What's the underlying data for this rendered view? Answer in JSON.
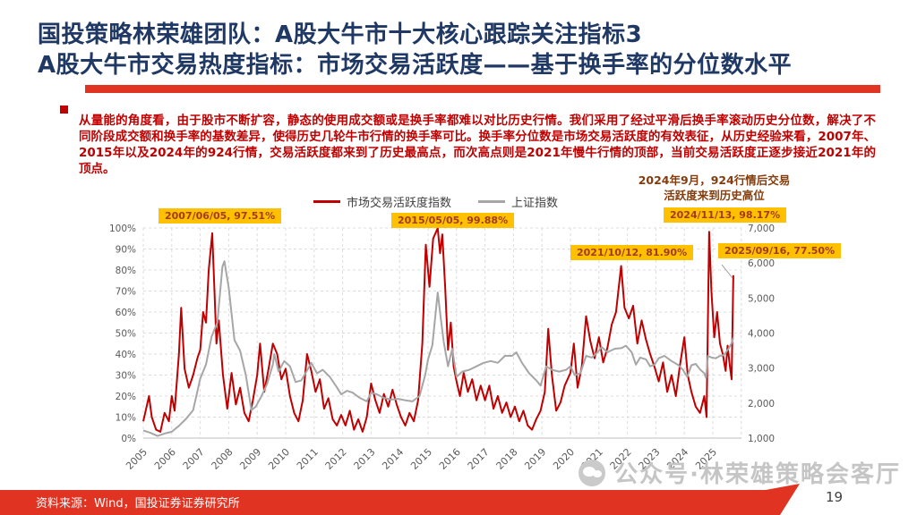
{
  "header": {
    "title_line1": "国投策略林荣雄团队：A股大牛市十大核心跟踪关注指标3",
    "title_line2": "A股大牛市交易热度指标：市场交易活跃度——基于换手率的分位数水平",
    "accent_color": "#E03322",
    "title_color": "#1F3864"
  },
  "body_paragraph": "从量能的角度看，由于股市不断扩容，静态的使用成交额或是换手率都难以对比历史行情。我们采用了经过平滑后换手率滚动历史分位数，解决了不同阶段成交额和换手率的基数差异，使得历史几轮牛市行情的换手率可比。换手率分位数是市场交易活跃度的有效表征，从历史经验来看，2007年、2015年以及2024年的924行情，交易活跃度都来到了历史最高点，而次高点则是2021年慢牛行情的顶部，当前交易活跃度正逐步接近2021年的顶点。",
  "chart_data": {
    "type": "line",
    "title": "",
    "note": {
      "line1": "2024年9月，924行情后交易",
      "line2": "活跃度来到历史高位"
    },
    "legend_position": "top-center",
    "grid": true,
    "x_axis": {
      "label": "",
      "ticks": [
        "2005",
        "2006",
        "2007",
        "2008",
        "2009",
        "2010",
        "2011",
        "2012",
        "2013",
        "2014",
        "2015",
        "2016",
        "2017",
        "2018",
        "2019",
        "2020",
        "2021",
        "2022",
        "2023",
        "2024",
        "2025"
      ]
    },
    "y_axis_left": {
      "label": "",
      "range": [
        0,
        100
      ],
      "unit": "%",
      "ticks": [
        "100%",
        "90%",
        "80%",
        "70%",
        "60%",
        "50%",
        "40%",
        "30%",
        "20%",
        "10%",
        "0%"
      ]
    },
    "y_axis_right": {
      "label": "",
      "range": [
        1000,
        7000
      ],
      "ticks": [
        "7,000",
        "6,000",
        "5,000",
        "4,000",
        "3,000",
        "2,000",
        "1,000"
      ]
    },
    "legend": [
      {
        "name": "市场交易活跃度指数",
        "color": "#C00000"
      },
      {
        "name": "上证指数",
        "color": "#A6A6A6"
      }
    ],
    "annotations": [
      {
        "text": "2007/06/05, 97.51%",
        "date": "2007/06/05",
        "value": 97.51
      },
      {
        "text": "2015/05/05, 99.88%",
        "date": "2015/05/05",
        "value": 99.88
      },
      {
        "text": "2021/10/12, 81.90%",
        "date": "2021/10/12",
        "value": 81.9
      },
      {
        "text": "2024/11/13, 98.17%",
        "date": "2024/11/13",
        "value": 98.17
      },
      {
        "text": "2025/09/16, 77.50%",
        "date": "2025/09/16",
        "value": 77.5
      }
    ],
    "annotation_style": {
      "background": "#FFC000",
      "text_color": "#A33B1B"
    },
    "series": [
      {
        "name": "市场交易活跃度指数",
        "axis": "left",
        "color": "#C00000",
        "points": [
          [
            2005.0,
            8
          ],
          [
            2005.1,
            14
          ],
          [
            2005.2,
            20
          ],
          [
            2005.3,
            10
          ],
          [
            2005.45,
            4
          ],
          [
            2005.6,
            3
          ],
          [
            2005.75,
            12
          ],
          [
            2005.9,
            8
          ],
          [
            2006.0,
            20
          ],
          [
            2006.1,
            13
          ],
          [
            2006.25,
            40
          ],
          [
            2006.33,
            62
          ],
          [
            2006.45,
            33
          ],
          [
            2006.6,
            24
          ],
          [
            2006.75,
            30
          ],
          [
            2006.9,
            38
          ],
          [
            2007.0,
            42
          ],
          [
            2007.1,
            60
          ],
          [
            2007.2,
            55
          ],
          [
            2007.3,
            80
          ],
          [
            2007.42,
            97.5
          ],
          [
            2007.5,
            70
          ],
          [
            2007.57,
            45
          ],
          [
            2007.65,
            56
          ],
          [
            2007.8,
            30
          ],
          [
            2007.95,
            14
          ],
          [
            2008.1,
            31
          ],
          [
            2008.25,
            16
          ],
          [
            2008.4,
            24
          ],
          [
            2008.55,
            12
          ],
          [
            2008.7,
            8
          ],
          [
            2008.85,
            18
          ],
          [
            2009.0,
            30
          ],
          [
            2009.1,
            45
          ],
          [
            2009.25,
            22
          ],
          [
            2009.4,
            33
          ],
          [
            2009.55,
            45
          ],
          [
            2009.7,
            40
          ],
          [
            2009.85,
            28
          ],
          [
            2010.0,
            33
          ],
          [
            2010.15,
            20
          ],
          [
            2010.3,
            12
          ],
          [
            2010.45,
            8
          ],
          [
            2010.6,
            18
          ],
          [
            2010.75,
            40
          ],
          [
            2010.9,
            32
          ],
          [
            2011.05,
            22
          ],
          [
            2011.2,
            28
          ],
          [
            2011.35,
            14
          ],
          [
            2011.5,
            19
          ],
          [
            2011.65,
            9
          ],
          [
            2011.8,
            6
          ],
          [
            2011.95,
            11
          ],
          [
            2012.1,
            6
          ],
          [
            2012.25,
            13
          ],
          [
            2012.4,
            4
          ],
          [
            2012.55,
            9
          ],
          [
            2012.7,
            3
          ],
          [
            2012.85,
            10
          ],
          [
            2013.0,
            26
          ],
          [
            2013.15,
            18
          ],
          [
            2013.3,
            12
          ],
          [
            2013.45,
            21
          ],
          [
            2013.6,
            15
          ],
          [
            2013.75,
            23
          ],
          [
            2013.9,
            16
          ],
          [
            2014.05,
            10
          ],
          [
            2014.2,
            6
          ],
          [
            2014.35,
            12
          ],
          [
            2014.5,
            8
          ],
          [
            2014.65,
            18
          ],
          [
            2014.8,
            45
          ],
          [
            2014.92,
            92
          ],
          [
            2015.05,
            72
          ],
          [
            2015.18,
            95
          ],
          [
            2015.34,
            99.9
          ],
          [
            2015.42,
            88
          ],
          [
            2015.5,
            97
          ],
          [
            2015.6,
            72
          ],
          [
            2015.7,
            42
          ],
          [
            2015.8,
            55
          ],
          [
            2015.9,
            34
          ],
          [
            2016.0,
            27
          ],
          [
            2016.12,
            20
          ],
          [
            2016.25,
            31
          ],
          [
            2016.4,
            22
          ],
          [
            2016.55,
            28
          ],
          [
            2016.7,
            18
          ],
          [
            2016.85,
            25
          ],
          [
            2017.0,
            18
          ],
          [
            2017.15,
            25
          ],
          [
            2017.3,
            14
          ],
          [
            2017.45,
            20
          ],
          [
            2017.6,
            12
          ],
          [
            2017.75,
            17
          ],
          [
            2017.9,
            10
          ],
          [
            2018.05,
            15
          ],
          [
            2018.2,
            8
          ],
          [
            2018.35,
            13
          ],
          [
            2018.5,
            6
          ],
          [
            2018.65,
            4
          ],
          [
            2018.8,
            9
          ],
          [
            2018.95,
            13
          ],
          [
            2019.1,
            22
          ],
          [
            2019.22,
            52
          ],
          [
            2019.35,
            30
          ],
          [
            2019.5,
            13
          ],
          [
            2019.65,
            17
          ],
          [
            2019.8,
            25
          ],
          [
            2020.0,
            31
          ],
          [
            2020.12,
            45
          ],
          [
            2020.25,
            24
          ],
          [
            2020.4,
            34
          ],
          [
            2020.55,
            58
          ],
          [
            2020.7,
            46
          ],
          [
            2020.85,
            38
          ],
          [
            2021.0,
            48
          ],
          [
            2021.15,
            36
          ],
          [
            2021.3,
            43
          ],
          [
            2021.45,
            54
          ],
          [
            2021.6,
            60
          ],
          [
            2021.78,
            81.9
          ],
          [
            2021.9,
            62
          ],
          [
            2022.05,
            57
          ],
          [
            2022.2,
            63
          ],
          [
            2022.35,
            45
          ],
          [
            2022.5,
            56
          ],
          [
            2022.65,
            47
          ],
          [
            2022.8,
            40
          ],
          [
            2022.95,
            34
          ],
          [
            2023.1,
            27
          ],
          [
            2023.25,
            36
          ],
          [
            2023.4,
            22
          ],
          [
            2023.55,
            30
          ],
          [
            2023.7,
            20
          ],
          [
            2023.85,
            35
          ],
          [
            2024.0,
            48
          ],
          [
            2024.12,
            30
          ],
          [
            2024.25,
            22
          ],
          [
            2024.4,
            15
          ],
          [
            2024.55,
            12
          ],
          [
            2024.7,
            20
          ],
          [
            2024.78,
            10
          ],
          [
            2024.87,
            98.17
          ],
          [
            2024.95,
            70
          ],
          [
            2025.05,
            48
          ],
          [
            2025.15,
            60
          ],
          [
            2025.25,
            45
          ],
          [
            2025.35,
            40
          ],
          [
            2025.45,
            32
          ],
          [
            2025.52,
            44
          ],
          [
            2025.6,
            34
          ],
          [
            2025.66,
            28
          ],
          [
            2025.72,
            77.5
          ]
        ]
      },
      {
        "name": "上证指数",
        "axis": "right",
        "color": "#A6A6A6",
        "points": [
          [
            2005.0,
            1220
          ],
          [
            2005.25,
            1150
          ],
          [
            2005.5,
            1060
          ],
          [
            2005.75,
            1130
          ],
          [
            2006.0,
            1180
          ],
          [
            2006.25,
            1350
          ],
          [
            2006.5,
            1550
          ],
          [
            2006.75,
            1800
          ],
          [
            2007.0,
            2700
          ],
          [
            2007.2,
            3100
          ],
          [
            2007.4,
            3900
          ],
          [
            2007.6,
            4300
          ],
          [
            2007.78,
            5900
          ],
          [
            2007.85,
            6050
          ],
          [
            2008.0,
            5300
          ],
          [
            2008.2,
            3800
          ],
          [
            2008.4,
            3500
          ],
          [
            2008.6,
            2800
          ],
          [
            2008.8,
            1800
          ],
          [
            2008.95,
            1900
          ],
          [
            2009.15,
            2200
          ],
          [
            2009.35,
            2550
          ],
          [
            2009.55,
            3100
          ],
          [
            2009.6,
            3400
          ],
          [
            2009.75,
            2900
          ],
          [
            2009.95,
            3200
          ],
          [
            2010.15,
            3050
          ],
          [
            2010.35,
            2600
          ],
          [
            2010.55,
            2650
          ],
          [
            2010.8,
            3000
          ],
          [
            2010.9,
            3150
          ],
          [
            2011.1,
            2850
          ],
          [
            2011.3,
            2950
          ],
          [
            2011.55,
            2750
          ],
          [
            2011.8,
            2450
          ],
          [
            2011.95,
            2250
          ],
          [
            2012.15,
            2350
          ],
          [
            2012.35,
            2300
          ],
          [
            2012.6,
            2150
          ],
          [
            2012.85,
            2050
          ],
          [
            2013.0,
            2300
          ],
          [
            2013.2,
            2250
          ],
          [
            2013.45,
            2150
          ],
          [
            2013.7,
            2100
          ],
          [
            2013.95,
            2120
          ],
          [
            2014.2,
            2080
          ],
          [
            2014.45,
            2050
          ],
          [
            2014.7,
            2200
          ],
          [
            2014.9,
            2800
          ],
          [
            2015.0,
            3250
          ],
          [
            2015.15,
            3650
          ],
          [
            2015.34,
            5160
          ],
          [
            2015.45,
            4400
          ],
          [
            2015.55,
            3750
          ],
          [
            2015.7,
            3050
          ],
          [
            2015.85,
            3550
          ],
          [
            2016.0,
            2750
          ],
          [
            2016.2,
            2900
          ],
          [
            2016.45,
            2950
          ],
          [
            2016.7,
            3050
          ],
          [
            2016.95,
            3150
          ],
          [
            2017.2,
            3200
          ],
          [
            2017.45,
            3150
          ],
          [
            2017.7,
            3350
          ],
          [
            2017.95,
            3350
          ],
          [
            2018.1,
            3450
          ],
          [
            2018.3,
            3150
          ],
          [
            2018.55,
            2850
          ],
          [
            2018.8,
            2650
          ],
          [
            2018.95,
            2500
          ],
          [
            2019.15,
            3050
          ],
          [
            2019.35,
            2950
          ],
          [
            2019.6,
            2900
          ],
          [
            2019.85,
            2950
          ],
          [
            2020.0,
            3050
          ],
          [
            2020.15,
            2800
          ],
          [
            2020.35,
            2850
          ],
          [
            2020.55,
            3350
          ],
          [
            2020.75,
            3300
          ],
          [
            2020.95,
            3450
          ],
          [
            2021.1,
            3600
          ],
          [
            2021.3,
            3450
          ],
          [
            2021.55,
            3550
          ],
          [
            2021.8,
            3570
          ],
          [
            2021.95,
            3640
          ],
          [
            2022.15,
            3450
          ],
          [
            2022.3,
            3100
          ],
          [
            2022.45,
            3300
          ],
          [
            2022.65,
            3250
          ],
          [
            2022.8,
            3050
          ],
          [
            2022.95,
            3100
          ],
          [
            2023.1,
            3280
          ],
          [
            2023.3,
            3350
          ],
          [
            2023.55,
            3200
          ],
          [
            2023.8,
            3080
          ],
          [
            2023.95,
            2950
          ],
          [
            2024.1,
            2750
          ],
          [
            2024.25,
            3080
          ],
          [
            2024.4,
            3120
          ],
          [
            2024.55,
            2960
          ],
          [
            2024.7,
            2850
          ],
          [
            2024.76,
            2720
          ],
          [
            2024.83,
            3350
          ],
          [
            2024.95,
            3300
          ],
          [
            2025.1,
            3280
          ],
          [
            2025.25,
            3350
          ],
          [
            2025.4,
            3380
          ],
          [
            2025.55,
            3550
          ],
          [
            2025.65,
            3700
          ],
          [
            2025.72,
            3870
          ]
        ]
      }
    ]
  },
  "watermark": {
    "text": "公众号·林荣雄策略会客厅"
  },
  "footer": {
    "source": "资料来源：Wind，国投证券证券研究所",
    "page_number": "19",
    "band_color": "#E03322"
  }
}
